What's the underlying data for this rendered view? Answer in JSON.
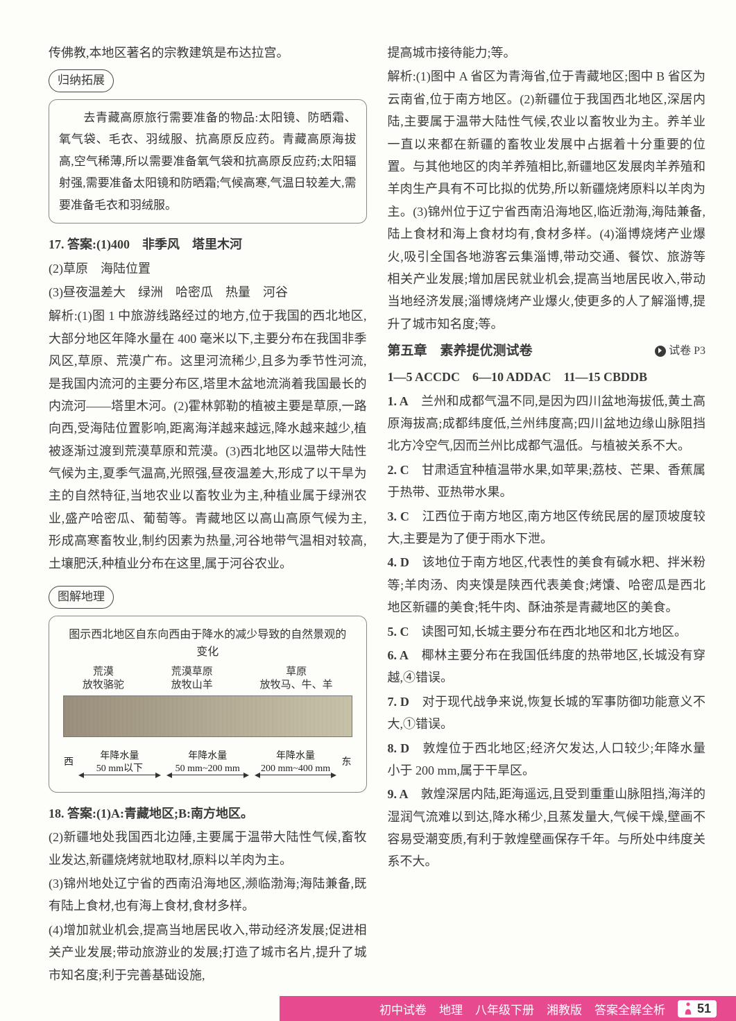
{
  "left": {
    "intro_line": "传佛教,本地区著名的宗教建筑是布达拉宫。",
    "tag_induct": "归纳拓展",
    "inset_induct": "　　去青藏高原旅行需要准备的物品:太阳镜、防晒霜、氧气袋、毛衣、羽绒服、抗高原反应药。青藏高原海拔高,空气稀薄,所以需要准备氧气袋和抗高原反应药;太阳辐射强,需要准备太阳镜和防晒霜;气候高寒,气温日较差大,需要准备毛衣和羽绒服。",
    "q17": {
      "head": "17. 答案:(1)400　非季风　塔里木河",
      "line2": "(2)草原　海陆位置",
      "line3": "(3)昼夜温差大　绿洲　哈密瓜　热量　河谷",
      "analysis": "解析:(1)图 1 中旅游线路经过的地方,位于我国的西北地区,大部分地区年降水量在 400 毫米以下,主要分布在我国非季风区,草原、荒漠广布。这里河流稀少,且多为季节性河流,是我国内流河的主要分布区,塔里木盆地流淌着我国最长的内流河——塔里木河。(2)霍林郭勒的植被主要是草原,一路向西,受海陆位置影响,距离海洋越来越远,降水越来越少,植被逐渐过渡到荒漠草原和荒漠。(3)西北地区以温带大陆性气候为主,夏季气温高,光照强,昼夜温差大,形成了以干旱为主的自然特征,当地农业以畜牧业为主,种植业属于绿洲农业,盛产哈密瓜、葡萄等。青藏地区以高山高原气候为主,形成高寒畜牧业,制约因素为热量,河谷地带气温相对较高,土壤肥沃,种植业分布在这里,属于河谷农业。"
    },
    "tag_diagram": "图解地理",
    "diagram": {
      "title": "图示西北地区自东向西由于降水的减少导致的自然景观的变化",
      "cols": [
        "荒漠\n放牧骆驼",
        "荒漠草原\n放牧山羊",
        "草原\n放牧马、牛、羊"
      ],
      "west": "西",
      "east": "东",
      "rain": [
        "年降水量\n50 mm以下",
        "年降水量\n50 mm~200 mm",
        "年降水量\n200 mm~400 mm"
      ],
      "band_colors": [
        "#9a8f7d",
        "#a79e88",
        "#b4ac95",
        "#bfb99f",
        "#c7c1a7"
      ]
    },
    "q18": {
      "head": "18. 答案:(1)A:青藏地区;B:南方地区。",
      "p2": "(2)新疆地处我国西北边陲,主要属于温带大陆性气候,畜牧业发达,新疆烧烤就地取材,原料以羊肉为主。",
      "p3": "(3)锦州地处辽宁省的西南沿海地区,濒临渤海;海陆兼备,既有陆上食材,也有海上食材,食材多样。",
      "p4": "(4)增加就业机会,提高当地居民收入,带动经济发展;促进相关产业发展;带动旅游业的发展;打造了城市名片,提升了城市知名度;利于完善基础设施,"
    }
  },
  "right": {
    "cont1": "提高城市接待能力;等。",
    "analysis18": "解析:(1)图中 A 省区为青海省,位于青藏地区;图中 B 省区为云南省,位于南方地区。(2)新疆位于我国西北地区,深居内陆,主要属于温带大陆性气候,农业以畜牧业为主。养羊业一直以来都在新疆的畜牧业发展中占据着十分重要的位置。与其他地区的肉羊养殖相比,新疆地区发展肉羊养殖和羊肉生产具有不可比拟的优势,所以新疆烧烤原料以羊肉为主。(3)锦州位于辽宁省西南沿海地区,临近渤海,海陆兼备,陆上食材和海上食材均有,食材多样。(4)淄博烧烤产业爆火,吸引全国各地游客云集淄博,带动交通、餐饮、旅游等相关产业发展;增加居民就业机会,提高当地居民收入,带动当地经济发展;淄博烧烤产业爆火,使更多的人了解淄博,提升了城市知名度;等。",
    "section_title": "第五章　素养提优测试卷",
    "section_ref": "试卷 P3",
    "answers": "1—5 ACCDC　6—10 ADDAC　11—15 CBDDB",
    "items": [
      {
        "n": "1. A",
        "t": "　兰州和成都气温不同,是因为四川盆地海拔低,黄土高原海拔高;成都纬度低,兰州纬度高;四川盆地边缘山脉阻挡北方冷空气,因而兰州比成都气温低。与植被关系不大。"
      },
      {
        "n": "2. C",
        "t": "　甘肃适宜种植温带水果,如苹果;荔枝、芒果、香蕉属于热带、亚热带水果。"
      },
      {
        "n": "3. C",
        "t": "　江西位于南方地区,南方地区传统民居的屋顶坡度较大,主要是为了便于雨水下泄。"
      },
      {
        "n": "4. D",
        "t": "　该地位于南方地区,代表性的美食有碱水粑、拌米粉等;羊肉汤、肉夹馍是陕西代表美食;烤馕、哈密瓜是西北地区新疆的美食;牦牛肉、酥油茶是青藏地区的美食。"
      },
      {
        "n": "5. C",
        "t": "　读图可知,长城主要分布在西北地区和北方地区。"
      },
      {
        "n": "6. A",
        "t": "　椰林主要分布在我国低纬度的热带地区,长城没有穿越,④错误。"
      },
      {
        "n": "7. D",
        "t": "　对于现代战争来说,恢复长城的军事防御功能意义不大,①错误。"
      },
      {
        "n": "8. D",
        "t": "　敦煌位于西北地区;经济欠发达,人口较少;年降水量小于 200 mm,属于干旱区。"
      },
      {
        "n": "9. A",
        "t": "　敦煌深居内陆,距海遥远,且受到重重山脉阻挡,海洋的湿润气流难以到达,降水稀少,且蒸发量大,气候干燥,壁画不容易受潮变质,有利于敦煌壁画保存千年。与所处中纬度关系不大。"
      }
    ]
  },
  "footer": {
    "a": "初中试卷",
    "b": "地理",
    "c": "八年级下册",
    "d": "湘教版",
    "e": "答案全解全析",
    "page": "51"
  }
}
